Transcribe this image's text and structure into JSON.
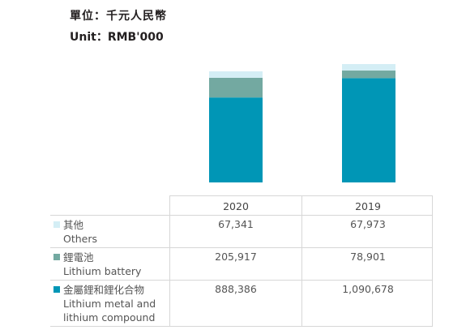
{
  "unit": {
    "cn": "單位：千元人民幣",
    "en": "Unit：RMB'000"
  },
  "chart_data": {
    "type": "bar",
    "stacked": true,
    "categories": [
      "2020",
      "2019"
    ],
    "series": [
      {
        "name_cn": "金屬鋰和鋰化合物",
        "name_en": "Lithium metal and\nlithium compound",
        "values": [
          888386,
          1090678
        ],
        "color": "#0096b6",
        "display": [
          "888,386",
          "1,090,678"
        ]
      },
      {
        "name_cn": "鋰電池",
        "name_en": "Lithium battery",
        "values": [
          205917,
          78901
        ],
        "color": "#73a9a1",
        "display": [
          "205,917",
          "78,901"
        ]
      },
      {
        "name_cn": "其他",
        "name_en": "Others",
        "values": [
          67341,
          67973
        ],
        "color": "#d4eef5",
        "display": [
          "67,341",
          "67,973"
        ]
      }
    ]
  }
}
